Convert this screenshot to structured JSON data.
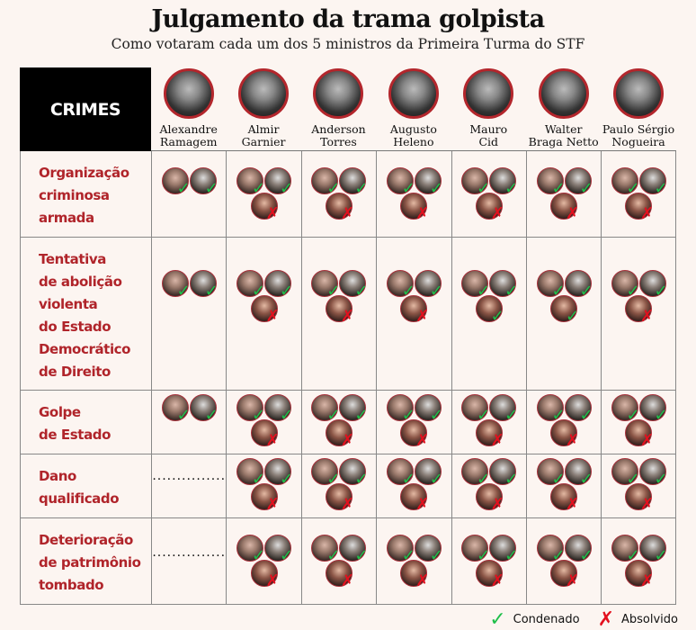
{
  "title": "Julgamento da trama golpista",
  "subtitle": "Como votaram cada um dos 5 ministros da Primeira Turma do STF",
  "crimes_header": "CRIMES",
  "defendants": [
    {
      "line1": "Alexandre",
      "line2": "Ramagem"
    },
    {
      "line1": "Almir",
      "line2": "Garnier"
    },
    {
      "line1": "Anderson",
      "line2": "Torres"
    },
    {
      "line1": "Augusto",
      "line2": "Heleno"
    },
    {
      "line1": "Mauro",
      "line2": "Cid"
    },
    {
      "line1": "Walter",
      "line2": "Braga Netto"
    },
    {
      "line1": "Paulo Sérgio",
      "line2": "Nogueira"
    }
  ],
  "rows": [
    {
      "crime": [
        "Organização",
        "criminosa",
        "armada"
      ],
      "votes": [
        [
          "C",
          "C"
        ],
        [
          "C",
          "C",
          "A"
        ],
        [
          "C",
          "C",
          "A"
        ],
        [
          "C",
          "C",
          "A"
        ],
        [
          "C",
          "C",
          "A"
        ],
        [
          "C",
          "C",
          "A"
        ],
        [
          "C",
          "C",
          "A"
        ]
      ]
    },
    {
      "crime": [
        "Tentativa",
        "de abolição",
        "violenta",
        "do Estado",
        "Democrático",
        "de Direito"
      ],
      "votes": [
        [
          "C",
          "C"
        ],
        [
          "C",
          "C",
          "A"
        ],
        [
          "C",
          "C",
          "A"
        ],
        [
          "C",
          "C",
          "A"
        ],
        [
          "C",
          "C",
          "C"
        ],
        [
          "C",
          "C",
          "C"
        ],
        [
          "C",
          "C",
          "A"
        ]
      ]
    },
    {
      "crime": [
        "Golpe",
        "de Estado"
      ],
      "votes": [
        [
          "C",
          "C"
        ],
        [
          "C",
          "C",
          "A"
        ],
        [
          "C",
          "C",
          "A"
        ],
        [
          "C",
          "C",
          "A"
        ],
        [
          "C",
          "C",
          "A"
        ],
        [
          "C",
          "C",
          "A"
        ],
        [
          "C",
          "C",
          "A"
        ]
      ]
    },
    {
      "crime": [
        "Dano",
        "qualificado"
      ],
      "votes": [
        null,
        [
          "C",
          "C",
          "A"
        ],
        [
          "C",
          "C",
          "A"
        ],
        [
          "C",
          "C",
          "A"
        ],
        [
          "C",
          "C",
          "A"
        ],
        [
          "C",
          "C",
          "A"
        ],
        [
          "C",
          "C",
          "A"
        ]
      ]
    },
    {
      "crime": [
        "Deterioração",
        "de patrimônio",
        "tombado"
      ],
      "votes": [
        null,
        [
          "C",
          "C",
          "A"
        ],
        [
          "C",
          "C",
          "A"
        ],
        [
          "C",
          "C",
          "A"
        ],
        [
          "C",
          "C",
          "A"
        ],
        [
          "C",
          "C",
          "A"
        ],
        [
          "C",
          "C",
          "A"
        ]
      ]
    }
  ],
  "no_vote_text": "...............",
  "legend": {
    "condenado": "Condenado",
    "absolvido": "Absolvido"
  },
  "colors": {
    "condenado": "#1fbf4a",
    "absolvido": "#e3101e",
    "crime_text": "#b0242a"
  },
  "icons": {
    "condenado": "check-icon",
    "absolvido": "x-icon"
  }
}
